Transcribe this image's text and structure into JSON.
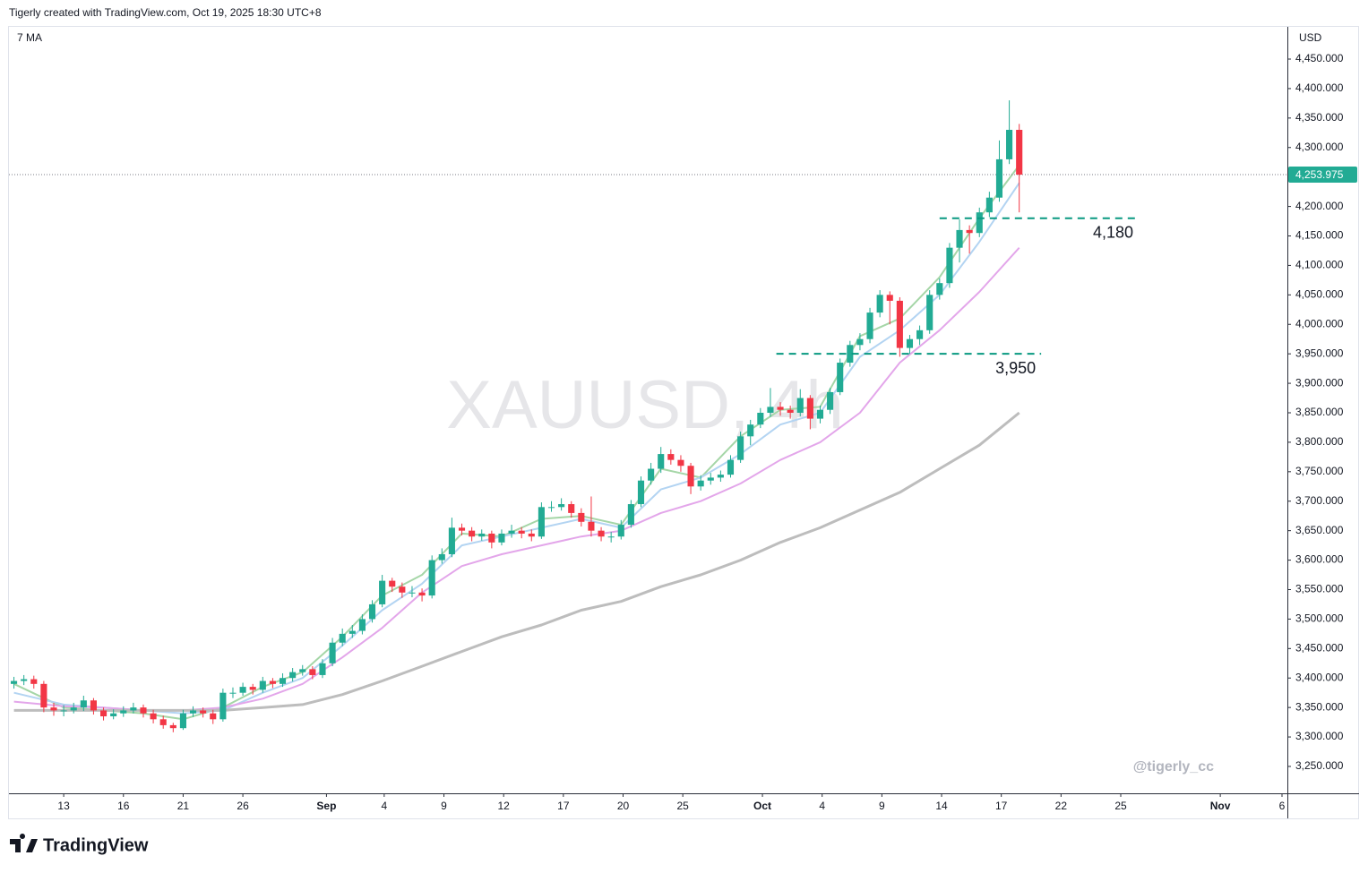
{
  "header": {
    "credit": "Tigerly created with TradingView.com, Oct 19, 2025 18:30 UTC+8",
    "logo": "TradingView"
  },
  "chart_data": {
    "type": "candlestick",
    "legend": "7 MA",
    "currency": "USD",
    "watermark": "XAUUSD, 4h",
    "signature": "@tigerly_cc",
    "up_color": "#22ab94",
    "down_color": "#f23645",
    "x": [
      -2.5,
      -2,
      -1.5,
      -1,
      -0.5,
      0,
      0.5,
      1,
      1.5,
      2,
      2.5,
      3,
      3.5,
      4,
      4.5,
      5,
      5.5,
      6,
      6.5,
      7,
      7.5,
      8,
      8.5,
      9,
      9.5,
      10,
      10.5,
      11,
      11.5,
      12,
      12.5,
      13,
      13.5,
      14,
      14.5,
      15,
      15.5,
      16,
      16.5,
      17,
      17.5,
      18,
      18.5,
      19,
      19.5,
      20,
      20.5,
      21,
      21.5,
      22,
      22.5,
      23,
      23.5,
      24,
      24.5,
      25,
      25.5,
      26,
      26.5,
      27,
      27.5,
      28,
      28.5,
      29,
      29.5,
      30,
      30.5,
      31,
      31.5,
      32,
      32.5,
      33,
      33.5,
      34,
      34.5,
      35,
      35.5,
      36,
      36.5,
      37,
      37.5,
      38,
      38.5,
      39,
      39.5,
      40,
      40.5,
      41,
      41.5,
      42,
      42.5,
      43,
      43.5,
      44,
      44.5,
      45,
      45.5,
      46,
      46.5,
      47,
      47.5,
      48
    ],
    "ohlc": [
      [
        3390,
        3402,
        3382,
        3395
      ],
      [
        3395,
        3405,
        3388,
        3398
      ],
      [
        3398,
        3404,
        3382,
        3390
      ],
      [
        3390,
        3395,
        3342,
        3350
      ],
      [
        3350,
        3358,
        3336,
        3345
      ],
      [
        3345,
        3354,
        3335,
        3345
      ],
      [
        3345,
        3358,
        3340,
        3350
      ],
      [
        3350,
        3370,
        3344,
        3362
      ],
      [
        3362,
        3366,
        3338,
        3345
      ],
      [
        3345,
        3350,
        3328,
        3335
      ],
      [
        3335,
        3347,
        3330,
        3340
      ],
      [
        3340,
        3352,
        3334,
        3345
      ],
      [
        3345,
        3358,
        3340,
        3350
      ],
      [
        3350,
        3355,
        3333,
        3340
      ],
      [
        3340,
        3346,
        3323,
        3330
      ],
      [
        3330,
        3336,
        3314,
        3320
      ],
      [
        3320,
        3324,
        3308,
        3315
      ],
      [
        3315,
        3346,
        3312,
        3340
      ],
      [
        3340,
        3352,
        3334,
        3345
      ],
      [
        3345,
        3350,
        3333,
        3340
      ],
      [
        3340,
        3346,
        3322,
        3330
      ],
      [
        3330,
        3382,
        3326,
        3375
      ],
      [
        3375,
        3384,
        3366,
        3375
      ],
      [
        3375,
        3392,
        3370,
        3385
      ],
      [
        3385,
        3390,
        3372,
        3380
      ],
      [
        3380,
        3402,
        3375,
        3395
      ],
      [
        3395,
        3400,
        3383,
        3390
      ],
      [
        3390,
        3408,
        3385,
        3400
      ],
      [
        3400,
        3417,
        3394,
        3410
      ],
      [
        3410,
        3422,
        3404,
        3415
      ],
      [
        3415,
        3420,
        3398,
        3405
      ],
      [
        3405,
        3432,
        3400,
        3425
      ],
      [
        3425,
        3468,
        3420,
        3460
      ],
      [
        3460,
        3484,
        3454,
        3475
      ],
      [
        3475,
        3490,
        3468,
        3480
      ],
      [
        3480,
        3508,
        3474,
        3500
      ],
      [
        3500,
        3532,
        3494,
        3525
      ],
      [
        3525,
        3575,
        3520,
        3565
      ],
      [
        3565,
        3570,
        3546,
        3555
      ],
      [
        3555,
        3562,
        3536,
        3545
      ],
      [
        3545,
        3556,
        3537,
        3545
      ],
      [
        3545,
        3552,
        3530,
        3540
      ],
      [
        3540,
        3608,
        3535,
        3600
      ],
      [
        3600,
        3620,
        3594,
        3610
      ],
      [
        3610,
        3672,
        3605,
        3655
      ],
      [
        3655,
        3662,
        3642,
        3650
      ],
      [
        3650,
        3656,
        3632,
        3640
      ],
      [
        3640,
        3652,
        3633,
        3645
      ],
      [
        3645,
        3650,
        3620,
        3630
      ],
      [
        3630,
        3652,
        3625,
        3645
      ],
      [
        3645,
        3660,
        3638,
        3650
      ],
      [
        3650,
        3656,
        3637,
        3645
      ],
      [
        3645,
        3652,
        3632,
        3640
      ],
      [
        3640,
        3698,
        3636,
        3690
      ],
      [
        3690,
        3700,
        3682,
        3690
      ],
      [
        3690,
        3705,
        3684,
        3695
      ],
      [
        3695,
        3700,
        3672,
        3680
      ],
      [
        3680,
        3688,
        3657,
        3665
      ],
      [
        3665,
        3708,
        3640,
        3650
      ],
      [
        3650,
        3656,
        3632,
        3640
      ],
      [
        3640,
        3648,
        3630,
        3640
      ],
      [
        3640,
        3668,
        3635,
        3660
      ],
      [
        3660,
        3702,
        3655,
        3695
      ],
      [
        3695,
        3742,
        3690,
        3735
      ],
      [
        3735,
        3765,
        3728,
        3755
      ],
      [
        3755,
        3792,
        3748,
        3780
      ],
      [
        3780,
        3788,
        3762,
        3770
      ],
      [
        3770,
        3778,
        3750,
        3760
      ],
      [
        3760,
        3765,
        3712,
        3725
      ],
      [
        3725,
        3744,
        3718,
        3735
      ],
      [
        3735,
        3748,
        3728,
        3740
      ],
      [
        3740,
        3752,
        3733,
        3745
      ],
      [
        3745,
        3778,
        3740,
        3770
      ],
      [
        3770,
        3818,
        3765,
        3810
      ],
      [
        3810,
        3838,
        3795,
        3830
      ],
      [
        3830,
        3858,
        3824,
        3850
      ],
      [
        3850,
        3892,
        3843,
        3860
      ],
      [
        3860,
        3868,
        3845,
        3855
      ],
      [
        3855,
        3862,
        3840,
        3850
      ],
      [
        3850,
        3890,
        3844,
        3875
      ],
      [
        3875,
        3880,
        3822,
        3840
      ],
      [
        3840,
        3862,
        3832,
        3855
      ],
      [
        3855,
        3892,
        3848,
        3885
      ],
      [
        3885,
        3942,
        3880,
        3935
      ],
      [
        3935,
        3972,
        3928,
        3965
      ],
      [
        3965,
        3985,
        3956,
        3975
      ],
      [
        3975,
        4028,
        3968,
        4020
      ],
      [
        4020,
        4058,
        4012,
        4050
      ],
      [
        4050,
        4056,
        4000,
        4040
      ],
      [
        4040,
        4046,
        3945,
        3960
      ],
      [
        3960,
        3982,
        3950,
        3975
      ],
      [
        3975,
        3998,
        3965,
        3990
      ],
      [
        3990,
        4058,
        3984,
        4050
      ],
      [
        4050,
        4078,
        4042,
        4070
      ],
      [
        4070,
        4138,
        4062,
        4130
      ],
      [
        4130,
        4178,
        4105,
        4160
      ],
      [
        4160,
        4168,
        4120,
        4155
      ],
      [
        4155,
        4198,
        4148,
        4190
      ],
      [
        4190,
        4225,
        4182,
        4215
      ],
      [
        4215,
        4312,
        4208,
        4280
      ],
      [
        4280,
        4380,
        4272,
        4330
      ],
      [
        4330,
        4340,
        4190,
        4253.975
      ]
    ],
    "ma_x": [
      -2.5,
      0,
      2,
      4,
      6,
      8,
      10,
      12,
      14,
      16,
      18,
      20,
      22,
      24,
      26,
      28,
      30,
      32,
      34,
      36,
      38,
      40,
      42,
      44,
      46,
      48
    ],
    "ma": [
      {
        "color": "#a5d6a7",
        "values": [
          3390,
          3350,
          3345,
          3340,
          3330,
          3350,
          3385,
          3410,
          3470,
          3540,
          3575,
          3645,
          3640,
          3670,
          3675,
          3660,
          3755,
          3740,
          3810,
          3855,
          3860,
          3980,
          4010,
          4080,
          4180,
          4270
        ]
      },
      {
        "color": "#b3d4f2",
        "values": [
          3375,
          3355,
          3350,
          3345,
          3340,
          3345,
          3375,
          3400,
          3455,
          3515,
          3560,
          3625,
          3640,
          3655,
          3670,
          3655,
          3720,
          3740,
          3780,
          3830,
          3850,
          3945,
          3990,
          4050,
          4140,
          4240
        ]
      },
      {
        "color": "#e3a6ea",
        "values": [
          3360,
          3352,
          3350,
          3345,
          3345,
          3350,
          3365,
          3390,
          3435,
          3485,
          3545,
          3590,
          3610,
          3625,
          3640,
          3650,
          3680,
          3700,
          3730,
          3770,
          3800,
          3850,
          3935,
          3990,
          4055,
          4130
        ]
      },
      {
        "color": "#bdbdbd",
        "values": [
          3345,
          3345,
          3345,
          3345,
          3345,
          3345,
          3350,
          3355,
          3372,
          3395,
          3420,
          3445,
          3470,
          3490,
          3515,
          3530,
          3555,
          3575,
          3600,
          3630,
          3655,
          3685,
          3715,
          3755,
          3795,
          3850
        ]
      }
    ],
    "xlim": [
      -2.75,
      61.47
    ],
    "xticks": [
      {
        "value": 0,
        "label": "13"
      },
      {
        "value": 3,
        "label": "16"
      },
      {
        "value": 6,
        "label": "21"
      },
      {
        "value": 9,
        "label": "26"
      },
      {
        "value": 13.2,
        "label": "Sep"
      },
      {
        "value": 16.1,
        "label": "4"
      },
      {
        "value": 19.1,
        "label": "9"
      },
      {
        "value": 22.1,
        "label": "12"
      },
      {
        "value": 25.1,
        "label": "17"
      },
      {
        "value": 28.1,
        "label": "20"
      },
      {
        "value": 31.1,
        "label": "25"
      },
      {
        "value": 35.1,
        "label": "Oct"
      },
      {
        "value": 38.1,
        "label": "4"
      },
      {
        "value": 41.1,
        "label": "9"
      },
      {
        "value": 44.1,
        "label": "14"
      },
      {
        "value": 47.1,
        "label": "17"
      },
      {
        "value": 50.1,
        "label": "22"
      },
      {
        "value": 53.1,
        "label": "25"
      },
      {
        "value": 58.1,
        "label": "Nov"
      },
      {
        "value": 61.2,
        "label": "6"
      }
    ],
    "ylim": [
      3204.4,
      4504.7
    ],
    "yticks": [
      {
        "value": 3250,
        "label": "3,250.000"
      },
      {
        "value": 3300,
        "label": "3,300.000"
      },
      {
        "value": 3350,
        "label": "3,350.000"
      },
      {
        "value": 3400,
        "label": "3,400.000"
      },
      {
        "value": 3450,
        "label": "3,450.000"
      },
      {
        "value": 3500,
        "label": "3,500.000"
      },
      {
        "value": 3550,
        "label": "3,550.000"
      },
      {
        "value": 3600,
        "label": "3,600.000"
      },
      {
        "value": 3650,
        "label": "3,650.000"
      },
      {
        "value": 3700,
        "label": "3,700.000"
      },
      {
        "value": 3750,
        "label": "3,750.000"
      },
      {
        "value": 3800,
        "label": "3,800.000"
      },
      {
        "value": 3850,
        "label": "3,850.000"
      },
      {
        "value": 3900,
        "label": "3,900.000"
      },
      {
        "value": 3950,
        "label": "3,950.000"
      },
      {
        "value": 4000,
        "label": "4,000.000"
      },
      {
        "value": 4050,
        "label": "4,050.000"
      },
      {
        "value": 4100,
        "label": "4,100.000"
      },
      {
        "value": 4150,
        "label": "4,150.000"
      },
      {
        "value": 4200,
        "label": "4,200.000"
      },
      {
        "value": 4250,
        "label": "4,250.000"
      },
      {
        "value": 4300,
        "label": "4,300.000"
      },
      {
        "value": 4350,
        "label": "4,350.000"
      },
      {
        "value": 4400,
        "label": "4,400.000"
      },
      {
        "value": 4450,
        "label": "4,450.000"
      }
    ],
    "last_price": {
      "value": 4253.975,
      "label": "4,253.975"
    },
    "last_price_color": "#22ab94",
    "levels": [
      {
        "value": 4180,
        "label": "4,180",
        "x": [
          44,
          54
        ],
        "color": "#089981"
      },
      {
        "value": 3950,
        "label": "3,950",
        "x": [
          35.8,
          49.1
        ],
        "color": "#089981"
      }
    ]
  }
}
